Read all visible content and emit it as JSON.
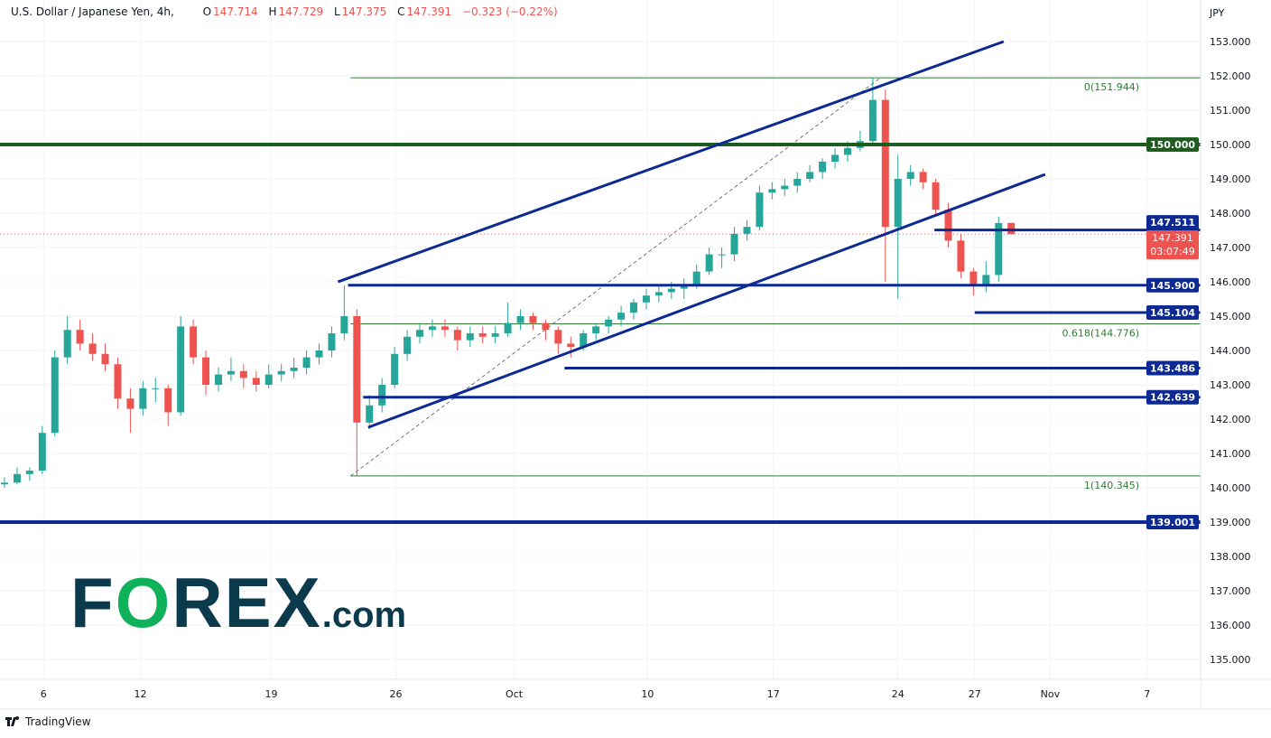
{
  "header": {
    "symbol": "U.S. Dollar / Japanese Yen, 4h,",
    "o_label": "O",
    "o": "147.714",
    "h_label": "H",
    "h": "147.729",
    "l_label": "L",
    "l": "147.375",
    "c_label": "C",
    "c": "147.391",
    "change": "−0.323 (−0.22%)"
  },
  "footer": {
    "brand": "TradingView"
  },
  "watermark": {
    "text": "FOREX.com"
  },
  "colors": {
    "up": "#26a69a",
    "down": "#ef5350",
    "support": "#0c2a92",
    "round_level": "#1e5b1e",
    "fib": "#2e7d32",
    "last_price": "#ef5350"
  },
  "chart_data": {
    "type": "candlestick",
    "title": "U.S. Dollar / Japanese Yen, 4h",
    "ylabel": "JPY",
    "ylim": [
      134.5,
      154.2
    ],
    "grid": true,
    "y_ticks": [
      "135.000",
      "136.000",
      "137.000",
      "138.000",
      "139.000",
      "140.000",
      "141.000",
      "142.000",
      "143.000",
      "144.000",
      "145.000",
      "146.000",
      "147.000",
      "148.000",
      "149.000",
      "150.000",
      "151.000",
      "152.000",
      "153.000"
    ],
    "x_ticks": [
      {
        "label": "6",
        "bar": 3.1
      },
      {
        "label": "12",
        "bar": 10.8
      },
      {
        "label": "19",
        "bar": 21.2
      },
      {
        "label": "26",
        "bar": 31.1
      },
      {
        "label": "Oct",
        "bar": 40.5
      },
      {
        "label": "10",
        "bar": 51.1
      },
      {
        "label": "17",
        "bar": 61.1
      },
      {
        "label": "24",
        "bar": 71.0
      },
      {
        "label": "27",
        "bar": 77.1
      },
      {
        "label": "Nov",
        "bar": 83.1
      },
      {
        "label": "7",
        "bar": 90.8
      }
    ],
    "candles_ohlc": [
      [
        140.1,
        140.3,
        140.0,
        140.15
      ],
      [
        140.15,
        140.6,
        140.1,
        140.4
      ],
      [
        140.4,
        140.6,
        140.2,
        140.5
      ],
      [
        140.5,
        141.8,
        140.4,
        141.6
      ],
      [
        141.6,
        144.0,
        141.5,
        143.8
      ],
      [
        143.8,
        145.0,
        143.6,
        144.6
      ],
      [
        144.6,
        144.9,
        144.0,
        144.2
      ],
      [
        144.2,
        144.5,
        143.7,
        143.9
      ],
      [
        143.9,
        144.2,
        143.4,
        143.6
      ],
      [
        143.6,
        143.8,
        142.3,
        142.6
      ],
      [
        142.6,
        142.9,
        141.6,
        142.3
      ],
      [
        142.3,
        143.1,
        142.1,
        142.9
      ],
      [
        142.9,
        143.2,
        142.5,
        142.9
      ],
      [
        142.9,
        143.0,
        141.8,
        142.2
      ],
      [
        142.2,
        145.0,
        142.1,
        144.7
      ],
      [
        144.7,
        144.9,
        143.6,
        143.8
      ],
      [
        143.8,
        144.0,
        142.7,
        143.0
      ],
      [
        143.0,
        143.5,
        142.8,
        143.3
      ],
      [
        143.3,
        143.8,
        143.1,
        143.4
      ],
      [
        143.4,
        143.6,
        142.9,
        143.2
      ],
      [
        143.2,
        143.4,
        142.8,
        143.0
      ],
      [
        143.0,
        143.6,
        142.9,
        143.3
      ],
      [
        143.3,
        143.6,
        143.1,
        143.4
      ],
      [
        143.4,
        143.8,
        143.2,
        143.5
      ],
      [
        143.5,
        144.0,
        143.3,
        143.8
      ],
      [
        143.8,
        144.2,
        143.6,
        144.0
      ],
      [
        144.0,
        144.7,
        143.8,
        144.5
      ],
      [
        144.5,
        145.9,
        144.3,
        145.0
      ],
      [
        145.0,
        145.2,
        140.345,
        141.9
      ],
      [
        141.9,
        142.7,
        141.7,
        142.4
      ],
      [
        142.4,
        143.2,
        142.2,
        143.0
      ],
      [
        143.0,
        144.1,
        142.9,
        143.9
      ],
      [
        143.9,
        144.6,
        143.7,
        144.4
      ],
      [
        144.4,
        144.8,
        144.2,
        144.6
      ],
      [
        144.6,
        144.9,
        144.4,
        144.7
      ],
      [
        144.7,
        144.9,
        144.4,
        144.6
      ],
      [
        144.6,
        144.7,
        144.0,
        144.3
      ],
      [
        144.3,
        144.7,
        144.1,
        144.5
      ],
      [
        144.5,
        144.7,
        144.2,
        144.4
      ],
      [
        144.4,
        144.7,
        144.2,
        144.5
      ],
      [
        144.5,
        145.4,
        144.4,
        144.8
      ],
      [
        144.8,
        145.2,
        144.6,
        145.0
      ],
      [
        145.0,
        145.1,
        144.6,
        144.8
      ],
      [
        144.8,
        144.9,
        144.3,
        144.6
      ],
      [
        144.6,
        144.7,
        143.9,
        144.2
      ],
      [
        144.2,
        144.4,
        143.8,
        144.1
      ],
      [
        144.1,
        144.6,
        144.0,
        144.5
      ],
      [
        144.5,
        144.8,
        144.3,
        144.7
      ],
      [
        144.7,
        145.0,
        144.5,
        144.9
      ],
      [
        144.9,
        145.3,
        144.7,
        145.1
      ],
      [
        145.1,
        145.5,
        144.9,
        145.4
      ],
      [
        145.4,
        145.8,
        145.2,
        145.6
      ],
      [
        145.6,
        145.9,
        145.4,
        145.7
      ],
      [
        145.7,
        146.0,
        145.5,
        145.8
      ],
      [
        145.8,
        146.1,
        145.5,
        145.9
      ],
      [
        145.9,
        146.5,
        145.8,
        146.3
      ],
      [
        146.3,
        147.0,
        146.2,
        146.8
      ],
      [
        146.8,
        147.0,
        146.4,
        146.8
      ],
      [
        146.8,
        147.6,
        146.6,
        147.4
      ],
      [
        147.4,
        147.8,
        147.2,
        147.6
      ],
      [
        147.6,
        148.8,
        147.5,
        148.6
      ],
      [
        148.6,
        148.9,
        148.4,
        148.7
      ],
      [
        148.7,
        149.0,
        148.5,
        148.8
      ],
      [
        148.8,
        149.2,
        148.6,
        149.0
      ],
      [
        149.0,
        149.4,
        148.9,
        149.2
      ],
      [
        149.2,
        149.6,
        149.0,
        149.5
      ],
      [
        149.5,
        149.9,
        149.3,
        149.7
      ],
      [
        149.7,
        150.1,
        149.5,
        149.9
      ],
      [
        149.9,
        150.4,
        149.8,
        150.1
      ],
      [
        150.1,
        151.944,
        150.0,
        151.3
      ],
      [
        151.3,
        151.6,
        146.0,
        147.6
      ],
      [
        147.6,
        149.7,
        145.5,
        149.0
      ],
      [
        149.0,
        149.4,
        148.8,
        149.2
      ],
      [
        149.2,
        149.3,
        148.7,
        148.9
      ],
      [
        148.9,
        149.0,
        147.9,
        148.1
      ],
      [
        148.1,
        148.3,
        147.0,
        147.2
      ],
      [
        147.2,
        147.4,
        146.1,
        146.3
      ],
      [
        146.3,
        146.4,
        145.6,
        145.9
      ],
      [
        145.9,
        146.6,
        145.7,
        146.2
      ],
      [
        146.2,
        147.9,
        146.0,
        147.714
      ],
      [
        147.714,
        147.729,
        147.375,
        147.391
      ]
    ],
    "last_price": {
      "value": 147.391,
      "label": "147.391",
      "countdown": "03:07:49"
    },
    "horizontal_levels": [
      {
        "label": "150.000",
        "value": 150.0,
        "from_bar": null,
        "style": "round_level"
      },
      {
        "label": "139.001",
        "value": 139.001,
        "from_bar": null,
        "style": "support"
      },
      {
        "label": "147.511",
        "value": 147.511,
        "from_bar": 73.9,
        "style": "support"
      },
      {
        "label": "145.900",
        "value": 145.9,
        "from_bar": 27.3,
        "style": "support"
      },
      {
        "label": "145.104",
        "value": 145.104,
        "from_bar": 77.1,
        "style": "support"
      },
      {
        "label": "143.486",
        "value": 143.486,
        "from_bar": 44.5,
        "style": "support"
      },
      {
        "label": "142.639",
        "value": 142.639,
        "from_bar": 28.5,
        "style": "support"
      }
    ],
    "fibonacci": [
      {
        "label": "0(151.944)",
        "value": 151.944,
        "from_bar": 27.5
      },
      {
        "label": "0.618(144.776)",
        "value": 144.776,
        "from_bar": 27.5
      },
      {
        "label": "1(140.345)",
        "value": 140.345,
        "from_bar": 27.5
      }
    ],
    "fib_trend": {
      "from": {
        "bar": 27.5,
        "price": 140.345
      },
      "to": {
        "bar": 69.6,
        "price": 151.944
      }
    },
    "trend_lines": [
      {
        "from": {
          "bar": 26.5,
          "price": 146.0
        },
        "to": {
          "bar": 79.4,
          "price": 153.0
        }
      },
      {
        "from": {
          "bar": 28.9,
          "price": 141.76
        },
        "to": {
          "bar": 82.7,
          "price": 149.13
        }
      }
    ]
  }
}
